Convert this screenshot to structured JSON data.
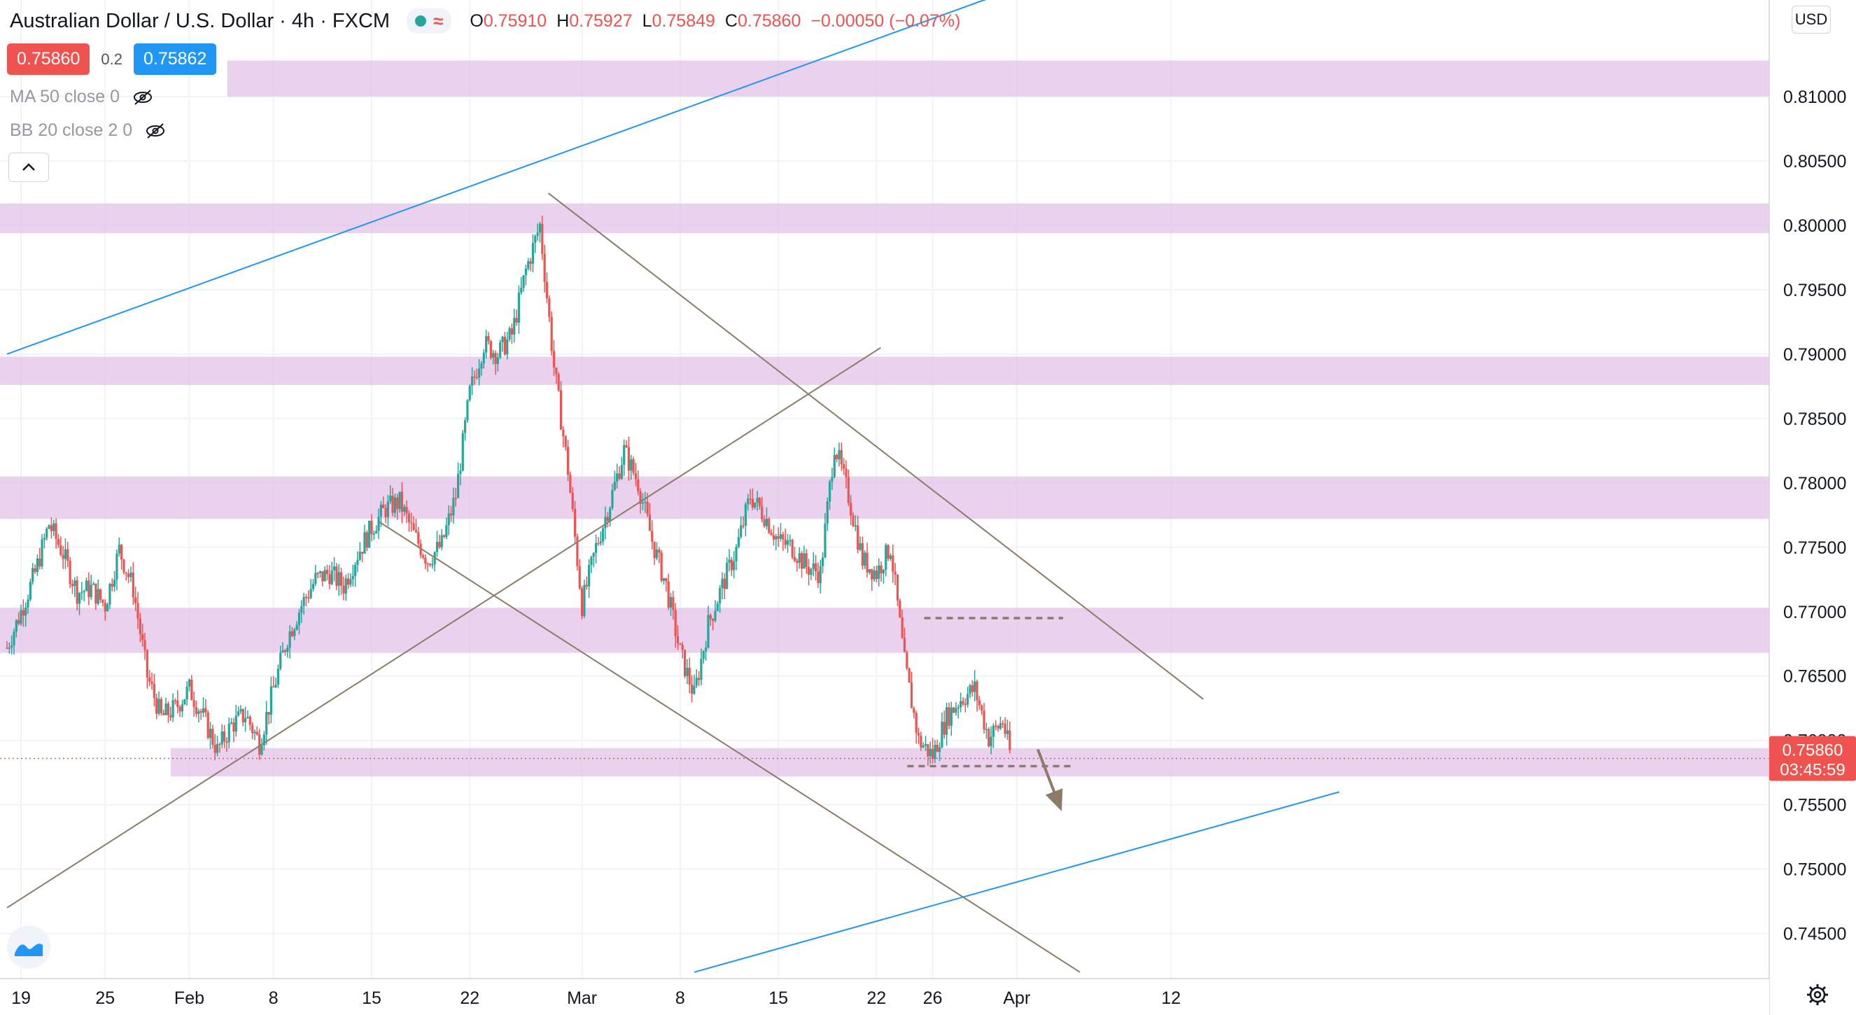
{
  "header": {
    "title": "Australian Dollar / U.S. Dollar · 4h · FXCM",
    "ohlc": [
      {
        "k": "O",
        "v": "0.75910"
      },
      {
        "k": "H",
        "v": "0.75927"
      },
      {
        "k": "L",
        "v": "0.75849"
      },
      {
        "k": "C",
        "v": "0.75860"
      },
      {
        "k": "",
        "v": "−0.00050 (−0.07%)"
      }
    ]
  },
  "trade": {
    "sell_price": "0.75860",
    "spread": "0.2",
    "buy_price": "0.75862"
  },
  "indicators": [
    {
      "label": "MA 50 close 0"
    },
    {
      "label": "BB 20 close 2 0"
    }
  ],
  "price_scale": {
    "currency": "USD",
    "current_price": "0.75860",
    "countdown": "03:45:59"
  },
  "colors": {
    "up": "#26a69a",
    "down": "#ef5350",
    "zone": "#e1bee7",
    "channel_blue": "#2196f3",
    "trend_brown": "#8d7b68",
    "current_price": "#ef5350"
  },
  "chart_data": {
    "type": "candlestick",
    "symbol": "AUDUSD",
    "timeframe": "4h",
    "ylim": [
      0.7415,
      0.8175
    ],
    "y_ticks": [
      "0.74500",
      "0.75000",
      "0.75500",
      "0.76000",
      "0.76500",
      "0.77000",
      "0.77500",
      "0.78000",
      "0.78500",
      "0.79000",
      "0.79500",
      "0.80000",
      "0.80500",
      "0.81000"
    ],
    "x_ticks": [
      {
        "label": "19",
        "day": -11
      },
      {
        "label": "25",
        "day": -5
      },
      {
        "label": "Feb",
        "day": 1
      },
      {
        "label": "8",
        "day": 7
      },
      {
        "label": "15",
        "day": 14
      },
      {
        "label": "22",
        "day": 21
      },
      {
        "label": "Mar",
        "day": 29
      },
      {
        "label": "8",
        "day": 36
      },
      {
        "label": "15",
        "day": 43
      },
      {
        "label": "22",
        "day": 50
      },
      {
        "label": "26",
        "day": 54
      },
      {
        "label": "Apr",
        "day": 60
      },
      {
        "label": "12",
        "day": 71
      }
    ],
    "price_path": [
      [
        -12,
        0.7672
      ],
      [
        -11,
        0.77
      ],
      [
        -10,
        0.773
      ],
      [
        -9,
        0.7768
      ],
      [
        -8,
        0.7745
      ],
      [
        -7,
        0.7715
      ],
      [
        -6,
        0.7718
      ],
      [
        -5,
        0.7705
      ],
      [
        -4,
        0.7748
      ],
      [
        -3,
        0.7718
      ],
      [
        -2,
        0.765
      ],
      [
        -1,
        0.7618
      ],
      [
        0,
        0.7625
      ],
      [
        1,
        0.764
      ],
      [
        2,
        0.7618
      ],
      [
        3,
        0.7592
      ],
      [
        4,
        0.7612
      ],
      [
        5,
        0.762
      ],
      [
        6,
        0.7598
      ],
      [
        7,
        0.764
      ],
      [
        8,
        0.768
      ],
      [
        9,
        0.7705
      ],
      [
        10,
        0.7725
      ],
      [
        11,
        0.773
      ],
      [
        12,
        0.772
      ],
      [
        13,
        0.7745
      ],
      [
        14,
        0.7765
      ],
      [
        15,
        0.778
      ],
      [
        16,
        0.7785
      ],
      [
        17,
        0.776
      ],
      [
        18,
        0.774
      ],
      [
        19,
        0.7752
      ],
      [
        20,
        0.779
      ],
      [
        21,
        0.787
      ],
      [
        22,
        0.7908
      ],
      [
        23,
        0.79
      ],
      [
        24,
        0.7915
      ],
      [
        25,
        0.7965
      ],
      [
        26,
        0.8
      ],
      [
        27,
        0.789
      ],
      [
        28,
        0.781
      ],
      [
        29,
        0.7705
      ],
      [
        30,
        0.775
      ],
      [
        31,
        0.7785
      ],
      [
        32,
        0.7825
      ],
      [
        33,
        0.78
      ],
      [
        34,
        0.7755
      ],
      [
        35,
        0.772
      ],
      [
        36,
        0.7668
      ],
      [
        37,
        0.7635
      ],
      [
        38,
        0.769
      ],
      [
        39,
        0.772
      ],
      [
        40,
        0.7748
      ],
      [
        41,
        0.779
      ],
      [
        42,
        0.7775
      ],
      [
        43,
        0.7755
      ],
      [
        44,
        0.775
      ],
      [
        45,
        0.7735
      ],
      [
        46,
        0.773
      ],
      [
        47,
        0.783
      ],
      [
        48,
        0.779
      ],
      [
        49,
        0.774
      ],
      [
        50,
        0.773
      ],
      [
        51,
        0.775
      ],
      [
        52,
        0.766
      ],
      [
        53,
        0.76
      ],
      [
        54,
        0.7588
      ],
      [
        55,
        0.7618
      ],
      [
        56,
        0.7632
      ],
      [
        57,
        0.764
      ],
      [
        58,
        0.7602
      ],
      [
        59,
        0.7615
      ],
      [
        59.6,
        0.7586
      ]
    ],
    "support_resistance_zones": [
      [
        0.81,
        0.8128
      ],
      [
        0.7994,
        0.8017
      ],
      [
        0.7876,
        0.7898
      ],
      [
        0.7772,
        0.7805
      ],
      [
        0.7668,
        0.7703
      ],
      [
        0.7572,
        0.7594
      ]
    ],
    "trend_lines": [
      {
        "name": "upper-channel",
        "color": "blue",
        "from": [
          -12,
          0.79
        ],
        "to": [
          59.7,
          0.8183
        ]
      },
      {
        "name": "lower-channel",
        "color": "blue",
        "from": [
          37,
          0.742
        ],
        "to": [
          83,
          0.756
        ]
      },
      {
        "name": "rising-support",
        "color": "brown",
        "from": [
          -12,
          0.747
        ],
        "to": [
          50.3,
          0.7905
        ]
      },
      {
        "name": "falling-resistance",
        "color": "brown",
        "from": [
          26.6,
          0.8025
        ],
        "to": [
          73.3,
          0.7632
        ]
      },
      {
        "name": "falling-support",
        "color": "brown",
        "from": [
          14.5,
          0.777
        ],
        "to": [
          64.5,
          0.742
        ]
      }
    ],
    "dashed_levels": [
      {
        "y": 0.7695,
        "from_day": 53.4,
        "to_day": 63.3
      },
      {
        "y": 0.758,
        "from_day": 52.2,
        "to_day": 64.0
      }
    ],
    "arrow": {
      "from": [
        61.5,
        0.7593
      ],
      "to": [
        63.2,
        0.7545
      ]
    },
    "current_price": 0.7586
  }
}
